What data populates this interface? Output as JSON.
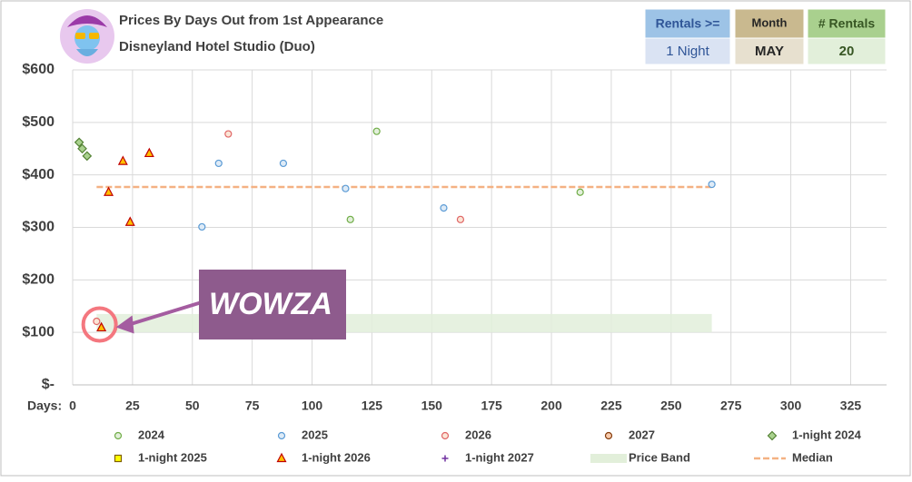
{
  "chart_data": {
    "type": "scatter",
    "title": "Prices By Days Out from 1st Appearance",
    "subtitle": "Disneyland Hotel Studio (Duo)",
    "x_label": "Days:",
    "xlim": [
      0,
      340
    ],
    "xticks": [
      0,
      25,
      50,
      75,
      100,
      125,
      150,
      175,
      200,
      225,
      250,
      275,
      300,
      325
    ],
    "ylim": [
      0,
      600
    ],
    "yticks": [
      {
        "value": 0,
        "label": "$-"
      },
      {
        "value": 100,
        "label": "$100"
      },
      {
        "value": 200,
        "label": "$200"
      },
      {
        "value": 300,
        "label": "$300"
      },
      {
        "value": 400,
        "label": "$400"
      },
      {
        "value": 500,
        "label": "$500"
      },
      {
        "value": 600,
        "label": "$600"
      }
    ],
    "grid": true,
    "series": [
      {
        "name": "2024",
        "marker": "circle",
        "color": "#70ad47",
        "fill": "#e2efda",
        "x": [
          127,
          116,
          212
        ],
        "y": [
          483,
          315,
          367
        ]
      },
      {
        "name": "2025",
        "marker": "circle",
        "color": "#5b9bd5",
        "fill": "#deebf7",
        "x": [
          54,
          61,
          88,
          114,
          155,
          267
        ],
        "y": [
          301,
          422,
          422,
          374,
          337,
          382
        ]
      },
      {
        "name": "2026",
        "marker": "circle",
        "color": "#e06666",
        "fill": "#fbe5d6",
        "x": [
          65,
          162,
          10
        ],
        "y": [
          478,
          315,
          121
        ]
      },
      {
        "name": "2027",
        "marker": "circle",
        "color": "#843c0c",
        "fill": "#f8cbad",
        "x": [],
        "y": []
      },
      {
        "name": "1-night 2024",
        "marker": "diamond",
        "color": "#548235",
        "fill": "#a9d18e",
        "x": [
          2.7,
          4,
          6
        ],
        "y": [
          462,
          450,
          436
        ]
      },
      {
        "name": "1-night 2025",
        "marker": "square",
        "color": "#7f6000",
        "fill": "#ffff00",
        "x": [],
        "y": []
      },
      {
        "name": "1-night 2026",
        "marker": "triangle",
        "color": "#c00000",
        "fill": "#ffc000",
        "x": [
          21,
          32,
          15,
          24,
          12
        ],
        "y": [
          426,
          441,
          367,
          310,
          109
        ]
      },
      {
        "name": "1-night 2027",
        "marker": "plus",
        "color": "#7030a0",
        "fill": "#7030a0",
        "x": [],
        "y": []
      }
    ],
    "price_band": {
      "name": "Price Band",
      "color": "#e2efda",
      "x": [
        10,
        267
      ],
      "y": [
        100,
        135
      ]
    },
    "median": {
      "name": "Median",
      "color": "#f4b183",
      "value": 377,
      "x": [
        10,
        267
      ]
    },
    "annotation": {
      "text": "WOWZA",
      "x": 12,
      "y": 115
    }
  },
  "filters": [
    {
      "label": "Rentals >=",
      "value": "1 Night"
    },
    {
      "label": "Month",
      "value": "MAY"
    },
    {
      "label": "# Rentals",
      "value": "20"
    }
  ]
}
